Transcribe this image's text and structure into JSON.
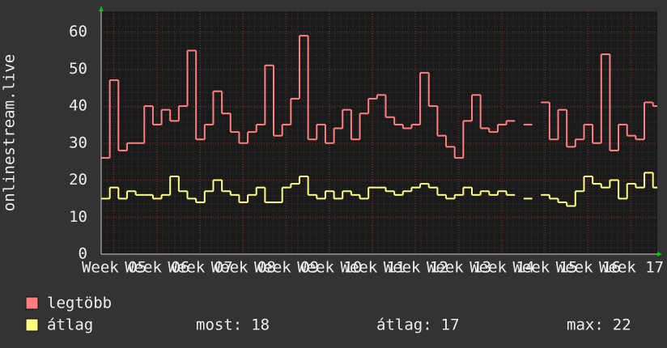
{
  "chart_data": {
    "type": "step-line",
    "y_label": "onlinestream.live",
    "xlim": [
      4.7,
      17.6
    ],
    "xticks": [
      {
        "value": 5,
        "label": "Week 05"
      },
      {
        "value": 6,
        "label": "Week 06"
      },
      {
        "value": 7,
        "label": "Week 07"
      },
      {
        "value": 8,
        "label": "Week 08"
      },
      {
        "value": 9,
        "label": "Week 09"
      },
      {
        "value": 10,
        "label": "Week 10"
      },
      {
        "value": 11,
        "label": "Week 11"
      },
      {
        "value": 12,
        "label": "Week 12"
      },
      {
        "value": 13,
        "label": "Week 13"
      },
      {
        "value": 14,
        "label": "Week 14"
      },
      {
        "value": 15,
        "label": "Week 15"
      },
      {
        "value": 16,
        "label": "Week 16"
      },
      {
        "value": 17,
        "label": "Week 17"
      }
    ],
    "ylim": [
      0,
      65.6
    ],
    "yticks": [
      0,
      10,
      20,
      30,
      40,
      50,
      60
    ],
    "grid": true,
    "x": [
      4.7,
      4.9,
      5.1,
      5.3,
      5.5,
      5.7,
      5.9,
      6.1,
      6.3,
      6.5,
      6.7,
      6.9,
      7.1,
      7.3,
      7.5,
      7.7,
      7.9,
      8.1,
      8.3,
      8.5,
      8.7,
      8.9,
      9.1,
      9.3,
      9.5,
      9.7,
      9.9,
      10.1,
      10.3,
      10.5,
      10.7,
      10.9,
      11.1,
      11.3,
      11.5,
      11.7,
      11.9,
      12.1,
      12.3,
      12.5,
      12.7,
      12.9,
      13.1,
      13.3,
      13.5,
      13.7,
      13.9,
      14.1,
      14.3,
      14.5,
      14.7,
      14.9,
      15.1,
      15.3,
      15.5,
      15.7,
      15.9,
      16.1,
      16.3,
      16.5,
      16.7,
      16.9,
      17.1,
      17.3,
      17.5
    ],
    "series": [
      {
        "name": "legtöbb",
        "color": "#ff7f7f",
        "values": [
          26,
          47,
          28,
          30,
          30,
          40,
          35,
          39,
          36,
          40,
          55,
          31,
          35,
          44,
          38,
          33,
          30,
          33,
          35,
          51,
          32,
          35,
          42,
          59,
          31,
          35,
          30,
          34,
          39,
          31,
          38,
          42,
          43,
          37,
          35,
          34,
          35,
          49,
          40,
          32,
          29,
          26,
          36,
          43,
          34,
          33,
          35,
          36,
          null,
          35,
          null,
          41,
          31,
          39,
          29,
          31,
          35,
          30,
          54,
          28,
          35,
          32,
          31,
          41,
          40
        ]
      },
      {
        "name": "átlag",
        "color": "#ffff7f",
        "values": [
          15,
          18,
          15,
          17,
          16,
          16,
          15,
          16,
          21,
          17,
          15,
          14,
          17,
          20,
          17,
          16,
          14,
          16,
          18,
          14,
          14,
          18,
          19,
          21,
          16,
          15,
          17,
          15,
          17,
          16,
          15,
          18,
          18,
          17,
          16,
          17,
          18,
          19,
          18,
          16,
          15,
          16,
          18,
          16,
          17,
          16,
          17,
          16,
          null,
          15,
          null,
          16,
          15,
          14,
          13,
          17,
          21,
          19,
          18,
          20,
          15,
          19,
          18,
          22,
          18
        ]
      }
    ],
    "stats": [
      {
        "label": "most:",
        "value": 18
      },
      {
        "label": "átlag:",
        "value": 17
      },
      {
        "label": "max:",
        "value": 22
      }
    ]
  }
}
